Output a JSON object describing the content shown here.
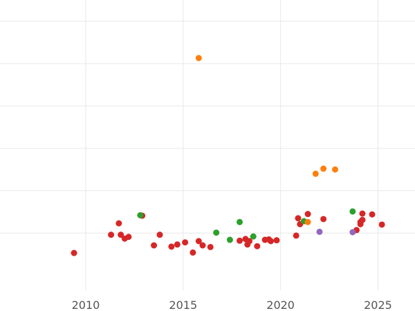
{
  "chart_data": {
    "type": "scatter",
    "title": "",
    "xlabel": "",
    "ylabel": "",
    "xlim": [
      2005.6,
      2026.9
    ],
    "ylim": [
      -1.35,
      5.5
    ],
    "grid": true,
    "x_ticks": [
      2010,
      2015,
      2020,
      2025
    ],
    "x_tick_labels": [
      "2010",
      "2015",
      "2020",
      "2025"
    ],
    "y_grid_values": [
      0,
      1,
      2,
      3,
      4,
      5
    ],
    "series": [
      {
        "color": "#d62728",
        "points": [
          [
            2009.4,
            -0.47
          ],
          [
            2011.3,
            -0.04
          ],
          [
            2011.7,
            0.23
          ],
          [
            2011.8,
            -0.04
          ],
          [
            2012.0,
            -0.13
          ],
          [
            2012.2,
            -0.09
          ],
          [
            2012.9,
            0.41
          ],
          [
            2013.5,
            -0.29
          ],
          [
            2013.8,
            -0.04
          ],
          [
            2014.4,
            -0.32
          ],
          [
            2014.7,
            -0.27
          ],
          [
            2015.1,
            -0.22
          ],
          [
            2015.5,
            -0.46
          ],
          [
            2015.8,
            -0.19
          ],
          [
            2016.0,
            -0.29
          ],
          [
            2016.4,
            -0.33
          ],
          [
            2017.9,
            -0.18
          ],
          [
            2018.2,
            -0.14
          ],
          [
            2018.3,
            -0.27
          ],
          [
            2018.4,
            -0.19
          ],
          [
            2018.8,
            -0.31
          ],
          [
            2019.2,
            -0.16
          ],
          [
            2019.4,
            -0.15
          ],
          [
            2019.5,
            -0.19
          ],
          [
            2019.8,
            -0.17
          ],
          [
            2020.8,
            -0.06
          ],
          [
            2020.9,
            0.35
          ],
          [
            2021.0,
            0.21
          ],
          [
            2021.4,
            0.45
          ],
          [
            2022.2,
            0.33
          ],
          [
            2023.9,
            0.07
          ],
          [
            2024.1,
            0.21
          ],
          [
            2024.1,
            0.26
          ],
          [
            2024.2,
            0.31
          ],
          [
            2024.2,
            0.46
          ],
          [
            2024.7,
            0.44
          ],
          [
            2025.2,
            0.2
          ]
        ]
      },
      {
        "color": "#2ca02c",
        "points": [
          [
            2012.8,
            0.42
          ],
          [
            2016.7,
            0.01
          ],
          [
            2017.4,
            -0.16
          ],
          [
            2017.9,
            0.26
          ],
          [
            2018.6,
            -0.08
          ],
          [
            2021.2,
            0.28
          ],
          [
            2023.7,
            0.51
          ]
        ]
      },
      {
        "color": "#ff7f0e",
        "points": [
          [
            2015.8,
            4.13
          ],
          [
            2021.4,
            0.26
          ],
          [
            2021.8,
            1.4
          ],
          [
            2022.2,
            1.52
          ],
          [
            2022.8,
            1.5
          ]
        ]
      },
      {
        "color": "#9467bd",
        "points": [
          [
            2022.0,
            0.03
          ],
          [
            2023.7,
            0.02
          ]
        ]
      }
    ]
  }
}
